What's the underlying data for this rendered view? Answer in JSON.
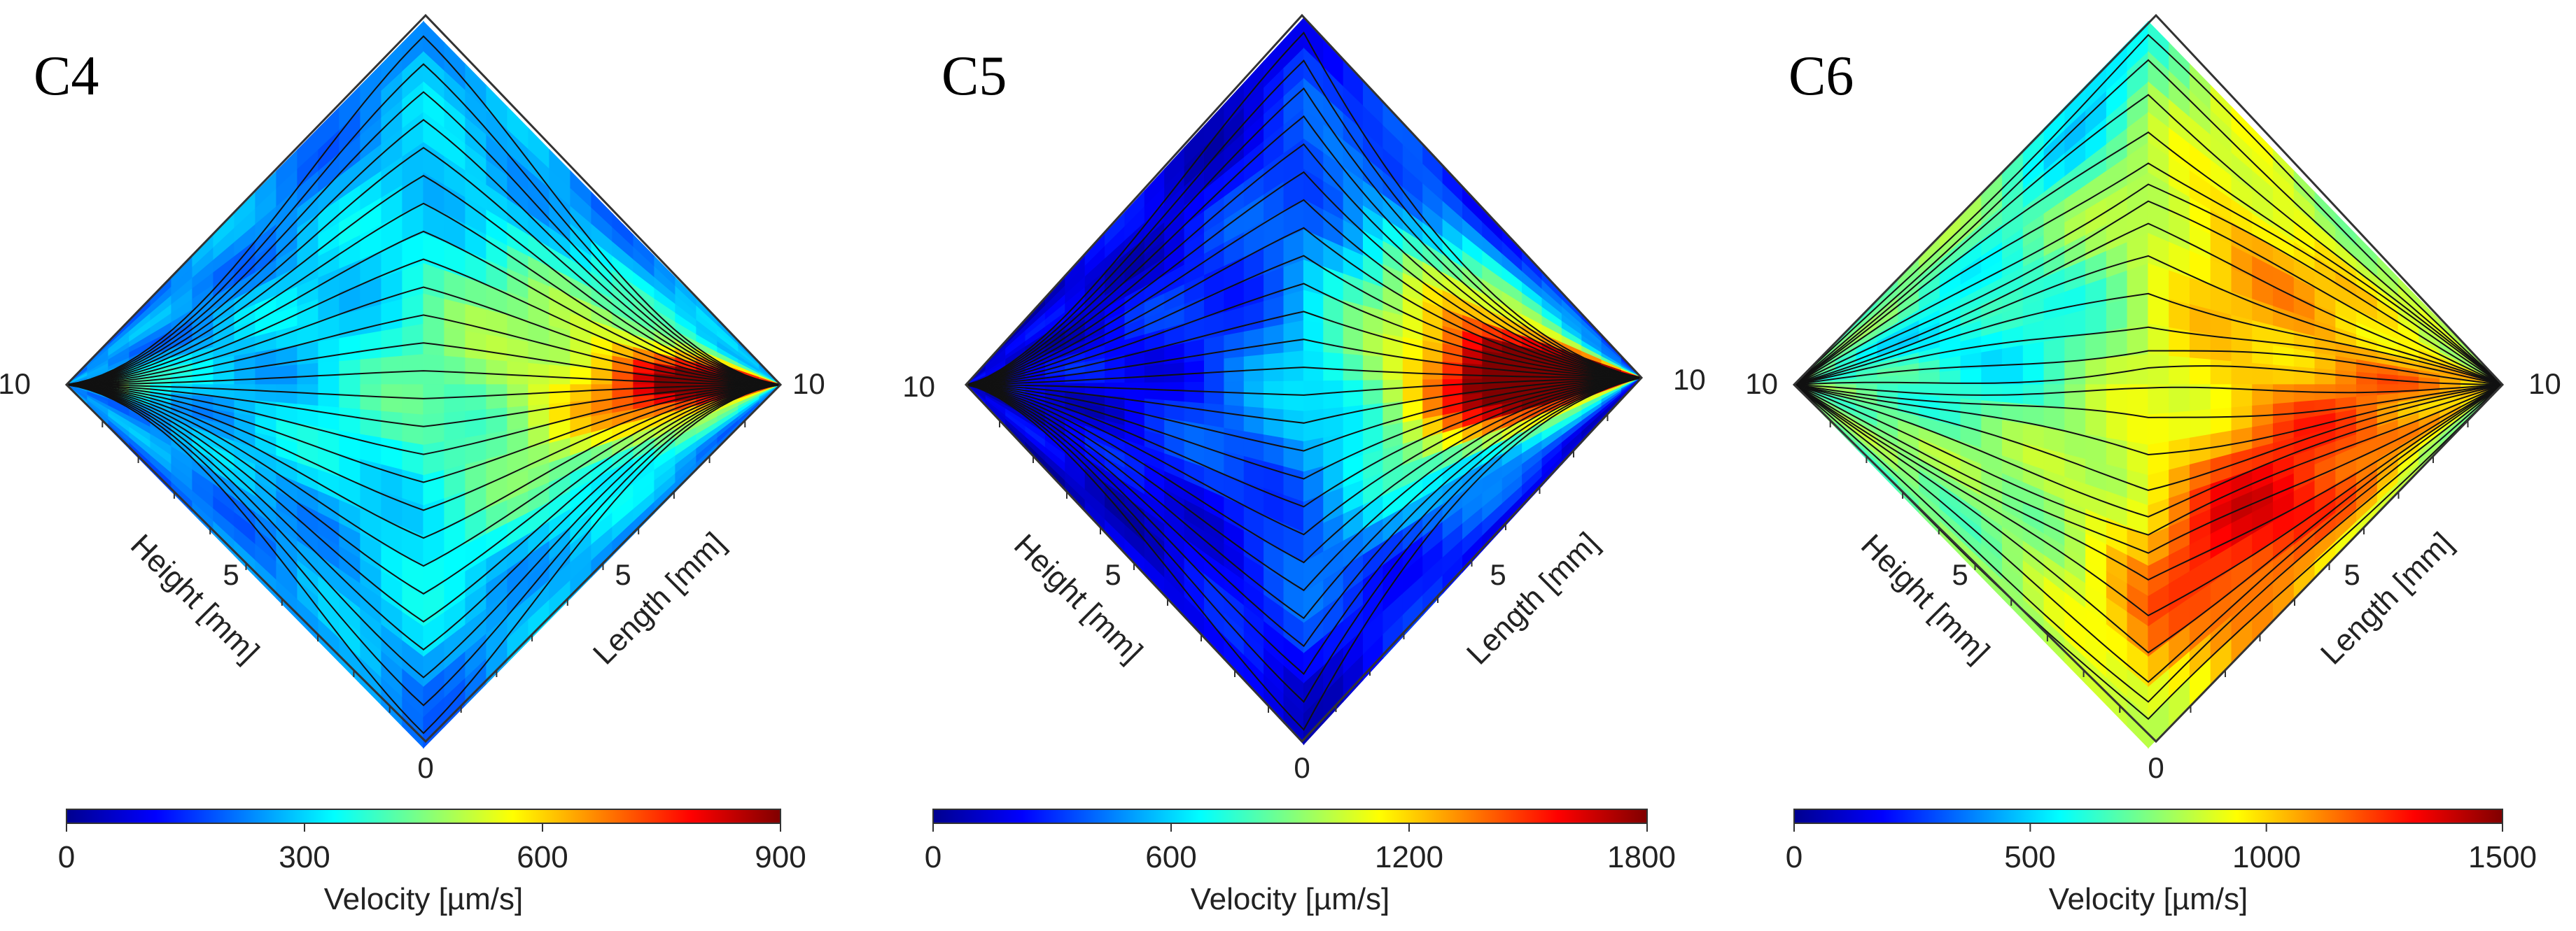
{
  "figure": {
    "panels": [
      {
        "label": "C4",
        "height_axis_label": "Height [mm]",
        "length_axis_label": "Length [mm]",
        "ticks": {
          "left": "10",
          "right": "10",
          "bottom": "0",
          "height_mid": "5",
          "length_mid": "5"
        },
        "colorbar": {
          "label": "Velocity [µm/s]",
          "min": 0,
          "max": 900,
          "ticks": [
            "0",
            "300",
            "600",
            "900"
          ]
        },
        "field": {
          "base": 0.25,
          "hotspots": [
            {
              "u": 0.97,
              "v": 0.5,
              "value": 0.95,
              "radius": 0.12
            },
            {
              "u": 0.8,
              "v": 0.5,
              "value": 0.55,
              "radius": 0.2
            },
            {
              "u": 0.03,
              "v": 0.5,
              "value": 0.5,
              "radius": 0.08
            },
            {
              "u": 0.5,
              "v": 0.5,
              "value": 0.35,
              "radius": 0.25
            }
          ],
          "streamline_pattern": "converging"
        }
      },
      {
        "label": "C5",
        "height_axis_label": "Height [mm]",
        "length_axis_label": "Length [mm]",
        "ticks": {
          "left": "10",
          "right": "10",
          "bottom": "0",
          "height_mid": "5",
          "length_mid": "5"
        },
        "colorbar": {
          "label": "Velocity [µm/s]",
          "min": 0,
          "max": 1800,
          "ticks": [
            "0",
            "600",
            "1200",
            "1800"
          ]
        },
        "field": {
          "base": 0.08,
          "hotspots": [
            {
              "u": 0.95,
              "v": 0.5,
              "value": 0.98,
              "radius": 0.1
            },
            {
              "u": 0.85,
              "v": 0.5,
              "value": 0.7,
              "radius": 0.15
            },
            {
              "u": 0.7,
              "v": 0.5,
              "value": 0.35,
              "radius": 0.25
            },
            {
              "u": 0.78,
              "v": 0.25,
              "value": 0.25,
              "radius": 0.15
            }
          ],
          "streamline_pattern": "converging_right"
        }
      },
      {
        "label": "C6",
        "height_axis_label": "Height [mm]",
        "length_axis_label": "Length [mm]",
        "ticks": {
          "left": "10",
          "right": "10",
          "bottom": "0",
          "height_mid": "5",
          "length_mid": "5"
        },
        "colorbar": {
          "label": "Velocity [µm/s]",
          "min": 0,
          "max": 1500,
          "ticks": [
            "0",
            "500",
            "1000",
            "1500"
          ]
        },
        "field": {
          "base": 0.5,
          "hotspots": [
            {
              "u": 0.65,
              "v": 0.8,
              "value": 0.85,
              "radius": 0.15
            },
            {
              "u": 0.85,
              "v": 0.5,
              "value": 0.72,
              "radius": 0.2
            },
            {
              "u": 0.6,
              "v": 0.2,
              "value": 0.65,
              "radius": 0.15
            },
            {
              "u": 0.25,
              "v": 0.35,
              "value": 0.35,
              "radius": 0.15
            },
            {
              "u": 0.45,
              "v": 0.06,
              "value": 0.3,
              "radius": 0.08
            }
          ],
          "streamline_pattern": "parallel"
        }
      }
    ]
  }
}
